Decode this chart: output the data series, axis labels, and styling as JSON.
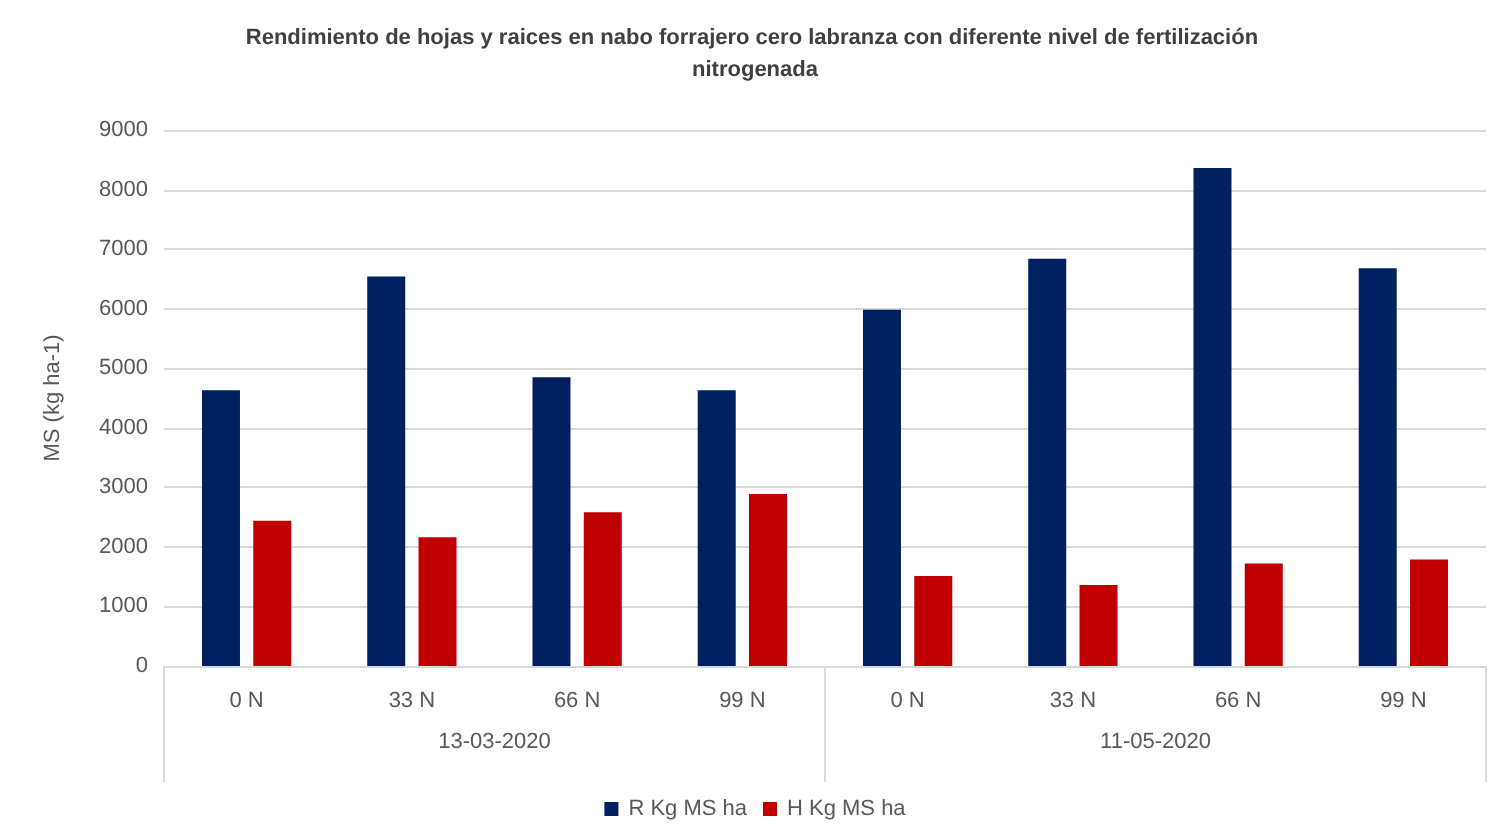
{
  "chart_data": {
    "type": "bar",
    "title": "Rendimiento de hojas y raices en nabo forrajero cero labranza con diferente nivel de fertilización nitrogenada",
    "ylabel": "MS (kg ha-1)",
    "categories": [
      "0 N",
      "33 N",
      "66 N",
      "99 N",
      "0 N",
      "33 N",
      "66 N",
      "99 N"
    ],
    "series": [
      {
        "name": "R Kg MS ha",
        "color": "#002060",
        "values": [
          4630,
          6540,
          4850,
          4630,
          5980,
          6840,
          8360,
          6680
        ]
      },
      {
        "name": "H Kg MS ha",
        "color": "#c00000",
        "values": [
          2440,
          2160,
          2580,
          2890,
          1510,
          1360,
          1720,
          1790
        ]
      }
    ],
    "annotations": [
      "13-03-2020",
      "11-05-2020"
    ],
    "ylim": [
      0,
      9000
    ],
    "yticks": [
      0,
      1000,
      2000,
      3000,
      4000,
      5000,
      6000,
      7000,
      8000,
      9000
    ],
    "grid": "y",
    "legend": "bottom"
  }
}
